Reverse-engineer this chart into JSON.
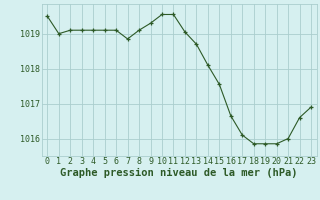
{
  "hours": [
    0,
    1,
    2,
    3,
    4,
    5,
    6,
    7,
    8,
    9,
    10,
    11,
    12,
    13,
    14,
    15,
    16,
    17,
    18,
    19,
    20,
    21,
    22,
    23
  ],
  "pressure": [
    1019.5,
    1019.0,
    1019.1,
    1019.1,
    1019.1,
    1019.1,
    1019.1,
    1018.85,
    1019.1,
    1019.3,
    1019.55,
    1019.55,
    1019.05,
    1018.7,
    1018.1,
    1017.55,
    1016.65,
    1016.1,
    1015.85,
    1015.85,
    1015.85,
    1016.0,
    1016.6,
    1016.9
  ],
  "line_color": "#2d5a27",
  "marker_color": "#2d5a27",
  "bg_color": "#d6f0f0",
  "grid_color": "#aacece",
  "ylabel_ticks": [
    1016,
    1017,
    1018,
    1019
  ],
  "xlabel_label": "Graphe pression niveau de la mer (hPa)",
  "ylim": [
    1015.5,
    1019.85
  ],
  "xlim": [
    -0.5,
    23.5
  ],
  "tick_fontsize": 6,
  "label_fontsize": 7.5
}
